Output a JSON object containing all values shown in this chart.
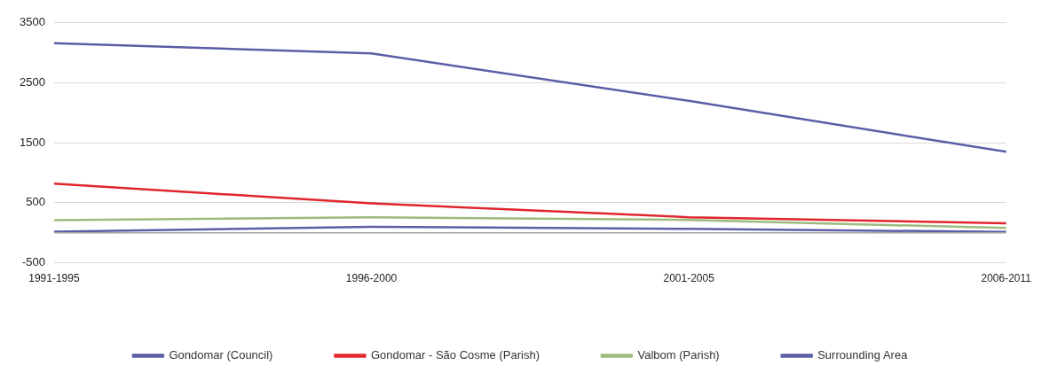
{
  "chart_data": {
    "type": "line",
    "categories": [
      "1991-1995",
      "1996-2000",
      "2001-2005",
      "2006-2011"
    ],
    "series": [
      {
        "name": "Gondomar (Council)",
        "color": "#5b5ea6",
        "values": [
          3160,
          2990,
          2200,
          1350
        ]
      },
      {
        "name": "Gondomar - São Cosme (Parish)",
        "color": "#e0262c",
        "values": [
          820,
          490,
          260,
          160
        ]
      },
      {
        "name": "Valbom (Parish)",
        "color": "#9bbb7f",
        "values": [
          210,
          260,
          215,
          80
        ]
      },
      {
        "name": "Surrounding Area",
        "color": "#5b5ea6",
        "values": [
          20,
          100,
          65,
          15
        ]
      }
    ],
    "ylim": [
      -500,
      3500
    ],
    "yticks": [
      -500,
      500,
      1500,
      2500,
      3500
    ],
    "grid": "y",
    "legend": "bottom",
    "marker": "none",
    "line_style": "solid"
  }
}
